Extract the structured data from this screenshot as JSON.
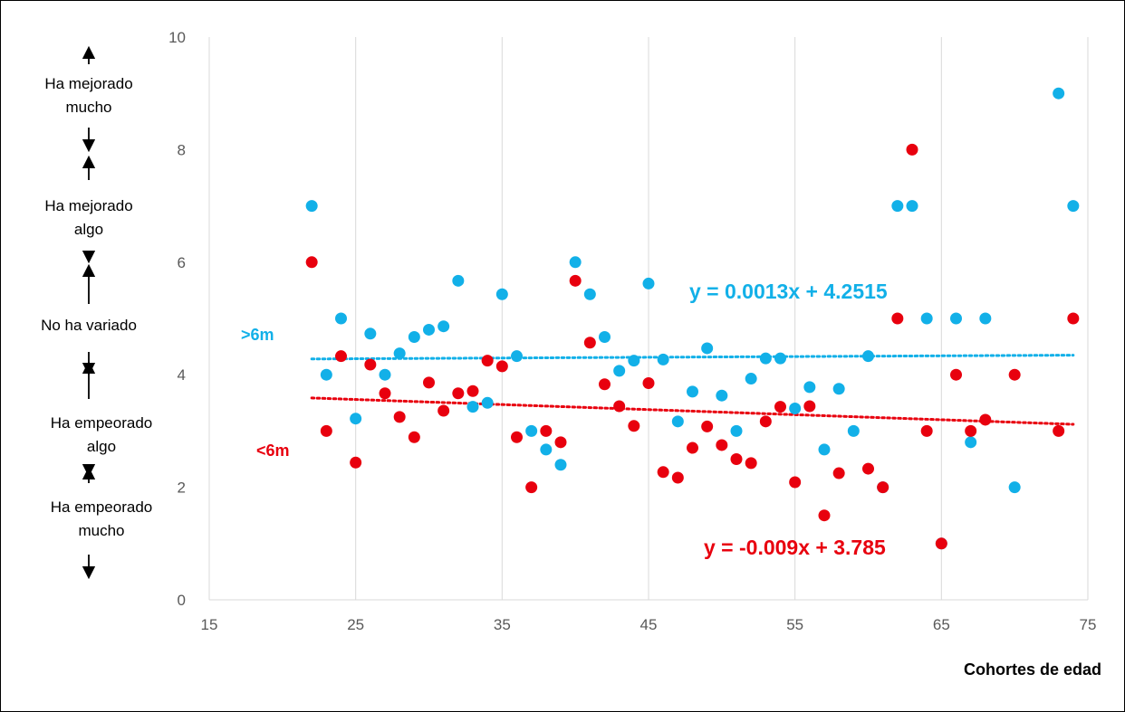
{
  "chart_data": {
    "type": "scatter",
    "xlabel": "Cohortes de edad",
    "xlim": [
      15,
      75
    ],
    "ylim": [
      0,
      10
    ],
    "x_ticks": [
      15,
      25,
      35,
      45,
      55,
      65,
      75
    ],
    "y_ticks": [
      0,
      2,
      4,
      6,
      8,
      10
    ],
    "grid": "vertical",
    "category_labels": [
      {
        "text": "Ha mejorado mucho",
        "lines": [
          "Ha mejorado",
          "mucho"
        ]
      },
      {
        "text": "Ha mejorado algo",
        "lines": [
          "Ha mejorado",
          "algo"
        ]
      },
      {
        "text": "No ha variado",
        "lines": [
          "No ha variado"
        ]
      },
      {
        "text": "Ha empeorado algo",
        "lines": [
          "Ha empeorado",
          "algo"
        ]
      },
      {
        "text": "Ha empeorado mucho",
        "lines": [
          "Ha empeorado",
          "mucho"
        ]
      }
    ],
    "series": [
      {
        "name": ">6m",
        "color": "#12b0e8",
        "trendline": {
          "equation": "y = 0.0013x + 4.2515",
          "slope": 0.0013,
          "intercept": 4.2515
        },
        "points": [
          [
            22,
            7
          ],
          [
            23,
            4
          ],
          [
            24,
            5
          ],
          [
            25,
            3.22
          ],
          [
            26,
            4.73
          ],
          [
            27,
            4
          ],
          [
            28,
            4.38
          ],
          [
            29,
            4.67
          ],
          [
            30,
            4.8
          ],
          [
            31,
            4.86
          ],
          [
            32,
            5.67
          ],
          [
            33,
            3.43
          ],
          [
            34,
            3.5
          ],
          [
            35,
            5.43
          ],
          [
            36,
            4.33
          ],
          [
            37,
            3
          ],
          [
            38,
            2.67
          ],
          [
            39,
            2.4
          ],
          [
            40,
            6
          ],
          [
            41,
            5.43
          ],
          [
            42,
            4.67
          ],
          [
            43,
            4.07
          ],
          [
            44,
            4.25
          ],
          [
            45,
            5.62
          ],
          [
            46,
            4.27
          ],
          [
            47,
            3.17
          ],
          [
            48,
            3.7
          ],
          [
            49,
            4.47
          ],
          [
            50,
            3.63
          ],
          [
            51,
            3
          ],
          [
            52,
            3.93
          ],
          [
            53,
            4.29
          ],
          [
            54,
            4.29
          ],
          [
            55,
            3.4
          ],
          [
            56,
            3.78
          ],
          [
            57,
            2.67
          ],
          [
            58,
            3.75
          ],
          [
            59,
            3
          ],
          [
            60,
            4.33
          ],
          [
            61,
            2
          ],
          [
            62,
            7
          ],
          [
            63,
            7
          ],
          [
            64,
            5
          ],
          [
            65,
            1
          ],
          [
            66,
            5
          ],
          [
            67,
            2.8
          ],
          [
            68,
            5
          ],
          [
            70,
            2
          ],
          [
            73,
            9
          ],
          [
            74,
            7
          ]
        ]
      },
      {
        "name": "<6m",
        "color": "#e8000e",
        "trendline": {
          "equation": "y = -0.009x + 3.785",
          "slope": -0.009,
          "intercept": 3.785
        },
        "points": [
          [
            22,
            6
          ],
          [
            23,
            3
          ],
          [
            24,
            4.33
          ],
          [
            25,
            2.44
          ],
          [
            26,
            4.18
          ],
          [
            27,
            3.67
          ],
          [
            28,
            3.25
          ],
          [
            29,
            2.89
          ],
          [
            30,
            3.86
          ],
          [
            31,
            3.36
          ],
          [
            32,
            3.67
          ],
          [
            33,
            3.71
          ],
          [
            34,
            4.25
          ],
          [
            35,
            4.15
          ],
          [
            36,
            2.89
          ],
          [
            37,
            2
          ],
          [
            38,
            3
          ],
          [
            39,
            2.8
          ],
          [
            40,
            5.67
          ],
          [
            41,
            4.57
          ],
          [
            42,
            3.83
          ],
          [
            43,
            3.44
          ],
          [
            44,
            3.09
          ],
          [
            45,
            3.85
          ],
          [
            46,
            2.27
          ],
          [
            47,
            2.17
          ],
          [
            48,
            2.7
          ],
          [
            49,
            3.08
          ],
          [
            50,
            2.75
          ],
          [
            51,
            2.5
          ],
          [
            52,
            2.43
          ],
          [
            53,
            3.17
          ],
          [
            54,
            3.43
          ],
          [
            55,
            2.09
          ],
          [
            56,
            3.44
          ],
          [
            57,
            1.5
          ],
          [
            58,
            2.25
          ],
          [
            60,
            2.33
          ],
          [
            61,
            2
          ],
          [
            62,
            5
          ],
          [
            63,
            8
          ],
          [
            64,
            3
          ],
          [
            65,
            1
          ],
          [
            66,
            4
          ],
          [
            67,
            3
          ],
          [
            68,
            3.2
          ],
          [
            70,
            4
          ],
          [
            73,
            3
          ],
          [
            74,
            5
          ]
        ]
      }
    ]
  }
}
